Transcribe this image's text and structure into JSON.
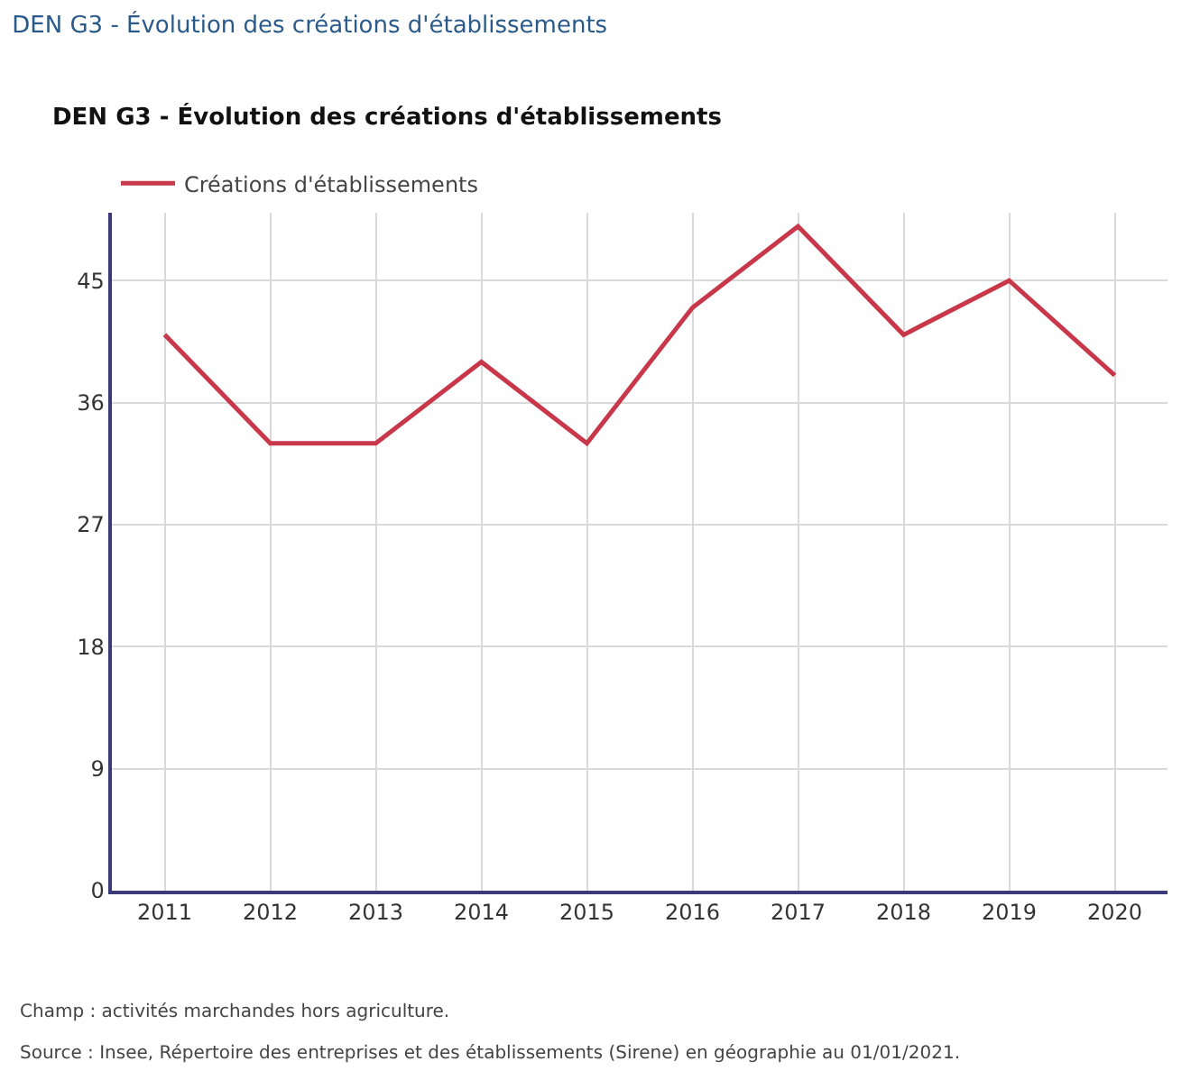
{
  "chart_data": {
    "type": "line",
    "title": "DEN G3 - Évolution des créations d'établissements",
    "subtitle": "DEN G3 - Évolution des créations d'établissements",
    "categories": [
      "2011",
      "2012",
      "2013",
      "2014",
      "2015",
      "2016",
      "2017",
      "2018",
      "2019",
      "2020"
    ],
    "series": [
      {
        "name": "Créations d'établissements",
        "color": "#c8374a",
        "values": [
          41,
          33,
          33,
          39,
          33,
          43,
          49,
          41,
          45,
          38
        ]
      }
    ],
    "ylim": [
      0,
      50
    ],
    "yticks": [
      0,
      9,
      18,
      27,
      36,
      45
    ],
    "grid": true,
    "legend": "top left",
    "marker": "none",
    "line_style": "solid",
    "annotations": [
      "Champ : activités marchandes hors agriculture.",
      "Source : Insee, Répertoire des entreprises et des établissements (Sirene) en géographie au 01/01/2021."
    ]
  }
}
